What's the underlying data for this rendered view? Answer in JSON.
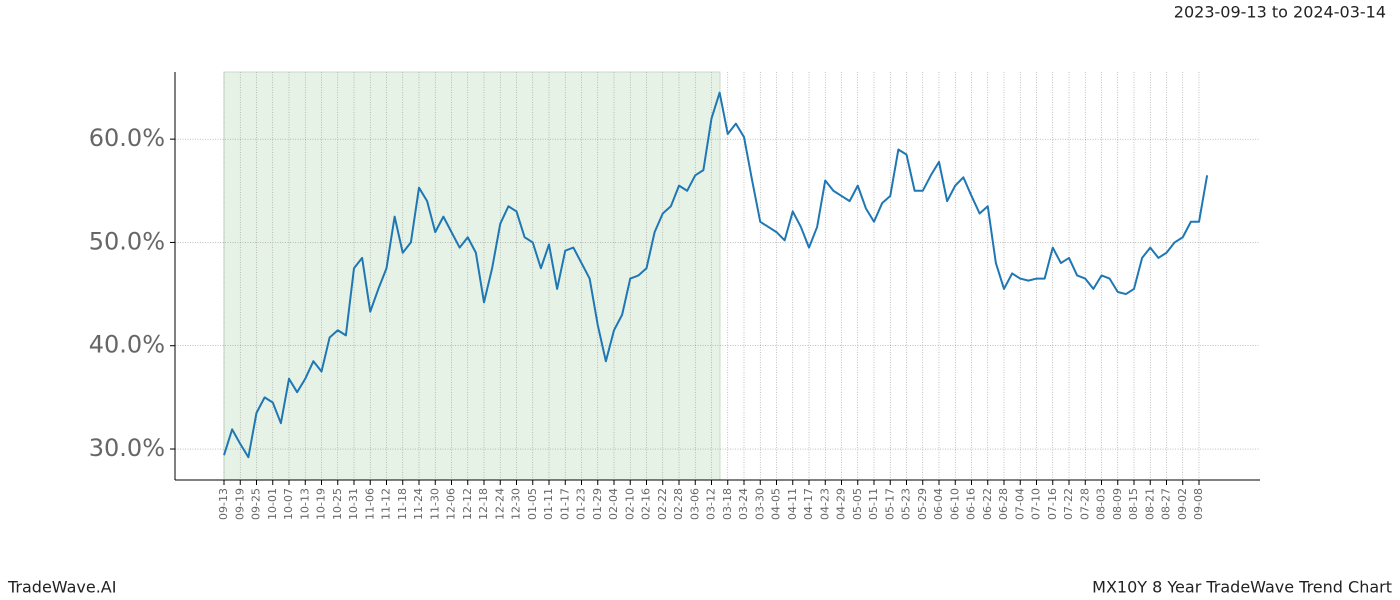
{
  "chart_data": {
    "type": "line",
    "title": "2023-09-13 to 2024-03-14",
    "footer_left": "TradeWave.AI",
    "footer_right": "MX10Y 8 Year TradeWave Trend Chart",
    "categories": [
      "09-13",
      null,
      "09-19",
      null,
      "09-25",
      null,
      "10-01",
      null,
      "10-07",
      null,
      "10-13",
      null,
      "10-19",
      null,
      "10-25",
      null,
      "10-31",
      null,
      "11-06",
      null,
      "11-12",
      null,
      "11-18",
      null,
      "11-24",
      null,
      "11-30",
      null,
      "12-06",
      null,
      "12-12",
      null,
      "12-18",
      null,
      "12-24",
      null,
      "12-30",
      null,
      "01-05",
      null,
      "01-11",
      null,
      "01-17",
      null,
      "01-23",
      null,
      "01-29",
      null,
      "02-04",
      null,
      "02-10",
      null,
      "02-16",
      null,
      "02-22",
      null,
      "02-28",
      null,
      "03-06",
      null,
      "03-12",
      null,
      "03-18",
      null,
      "03-24",
      null,
      "03-30",
      null,
      "04-05",
      null,
      "04-11",
      null,
      "04-17",
      null,
      "04-23",
      null,
      "04-29",
      null,
      "05-05",
      null,
      "05-11",
      null,
      "05-17",
      null,
      "05-23",
      null,
      "05-29",
      null,
      "06-04",
      null,
      "06-10",
      null,
      "06-16",
      null,
      "06-22",
      null,
      "06-28",
      null,
      "07-04",
      null,
      "07-10",
      null,
      "07-16",
      null,
      "07-22",
      null,
      "07-28",
      null,
      "08-03",
      null,
      "08-09",
      null,
      "08-15",
      null,
      "08-21",
      null,
      "08-27",
      null,
      "09-02",
      null,
      "09-08",
      null
    ],
    "series": [
      {
        "color": "#1f77b4",
        "values": [
          29.4,
          31.9,
          30.5,
          29.2,
          33.5,
          35.0,
          34.5,
          32.5,
          36.8,
          35.5,
          36.8,
          38.5,
          37.5,
          40.8,
          41.5,
          41.0,
          47.5,
          48.5,
          43.3,
          45.5,
          47.5,
          52.5,
          49.0,
          50.0,
          55.3,
          54.0,
          51.0,
          52.5,
          51.0,
          49.5,
          50.5,
          49.0,
          44.2,
          47.5,
          51.8,
          53.5,
          53.0,
          50.5,
          50.0,
          47.5,
          49.8,
          45.5,
          49.2,
          49.5,
          48.0,
          46.5,
          42.0,
          38.5,
          41.5,
          43.0,
          46.5,
          46.8,
          47.5,
          51.0,
          52.8,
          53.5,
          55.5,
          55.0,
          56.5,
          57.0,
          62.0,
          64.5,
          60.5,
          61.5,
          60.2,
          56.0,
          52.0,
          51.5,
          51.0,
          50.2,
          53.0,
          51.5,
          49.5,
          51.5,
          56.0,
          55.0,
          54.5,
          54.0,
          55.5,
          53.3,
          52.0,
          53.8,
          54.5,
          59.0,
          58.5,
          55.0,
          55.0,
          56.5,
          57.8,
          54.0,
          55.5,
          56.3,
          54.5,
          52.8,
          53.5,
          48.0,
          45.5,
          47.0,
          46.5,
          46.3,
          46.5,
          46.5,
          49.5,
          48.0,
          48.5,
          46.8,
          46.5,
          45.5,
          46.8,
          46.5,
          45.2,
          45.0,
          45.5,
          48.5,
          49.5,
          48.5,
          49.0,
          50.0,
          50.5,
          52.0,
          52.0,
          56.5
        ]
      }
    ],
    "ylim": [
      27.0,
      66.5
    ],
    "yticks": [
      {
        "value": 30,
        "label": "30.0%"
      },
      {
        "value": 40,
        "label": "40.0%"
      },
      {
        "value": 50,
        "label": "50.0%"
      },
      {
        "value": 60,
        "label": "60.0%"
      }
    ],
    "grid": true
  }
}
